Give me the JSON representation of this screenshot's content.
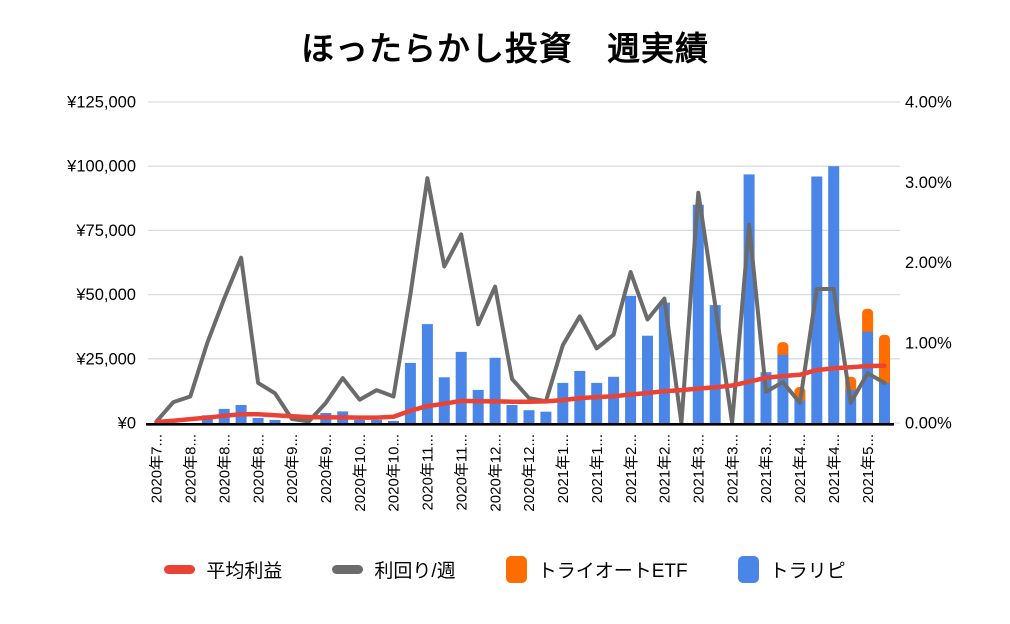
{
  "title": "ほったらかし投資　週実績",
  "legend": [
    {
      "label": "平均利益",
      "type": "line",
      "color": "#EA4335"
    },
    {
      "label": "利回り/週",
      "type": "line",
      "color": "#6B6B6B"
    },
    {
      "label": "トライオートETF",
      "type": "bar",
      "color": "#FF6D01"
    },
    {
      "label": "トラリピ",
      "type": "bar",
      "color": "#4A86E8"
    }
  ],
  "chart_data": {
    "type": "combo-bar-line",
    "weeks": 44,
    "x_tick_labels": [
      "2020年7...",
      "2020年8...",
      "2020年8...",
      "2020年8...",
      "2020年9...",
      "2020年9...",
      "2020年10...",
      "2020年10...",
      "2020年11...",
      "2020年11...",
      "2020年12...",
      "2020年12...",
      "2021年1...",
      "2021年1...",
      "2021年2...",
      "2021年2...",
      "2021年3...",
      "2021年3...",
      "2021年3...",
      "2021年4...",
      "2021年4...",
      "2021年5..."
    ],
    "x_tick_every": 2,
    "left_axis": {
      "min": 0,
      "max": 125000,
      "ticks": [
        "¥0",
        "¥25,000",
        "¥50,000",
        "¥75,000",
        "¥100,000",
        "¥125,000"
      ]
    },
    "right_axis": {
      "min": 0,
      "max": 4,
      "ticks": [
        "0.00%",
        "1.00%",
        "2.00%",
        "3.00%",
        "4.00%"
      ]
    },
    "series": [
      {
        "name": "トラリピ",
        "type": "bar",
        "axis": "left",
        "color": "#4A86E8",
        "values": [
          0,
          0,
          0,
          3000,
          5500,
          7000,
          2000,
          1200,
          0,
          0,
          3900,
          4500,
          1200,
          1200,
          800,
          23400,
          38500,
          17800,
          27700,
          12900,
          25400,
          7000,
          5000,
          4400,
          15600,
          20300,
          15600,
          18000,
          49500,
          34000,
          46900,
          0,
          85000,
          45900,
          0,
          96800,
          19800,
          26500,
          8800,
          96000,
          100000,
          12900,
          35500,
          15600
        ]
      },
      {
        "name": "トライオートETF",
        "type": "bar",
        "axis": "left",
        "stacked_on": "トラリピ",
        "color": "#FF6D01",
        "values": [
          0,
          0,
          0,
          0,
          0,
          0,
          0,
          0,
          0,
          0,
          0,
          0,
          0,
          0,
          0,
          0,
          0,
          0,
          0,
          0,
          0,
          0,
          0,
          0,
          0,
          0,
          0,
          0,
          0,
          0,
          0,
          0,
          0,
          0,
          0,
          0,
          0,
          5000,
          5200,
          0,
          0,
          5100,
          9000,
          18800
        ]
      },
      {
        "name": "利回り/週",
        "type": "line",
        "axis": "right",
        "color": "#6B6B6B",
        "values": [
          0.02,
          0.26,
          0.33,
          1.0,
          1.55,
          2.06,
          0.5,
          0.37,
          0.05,
          0.02,
          0.25,
          0.56,
          0.29,
          0.41,
          0.33,
          1.6,
          3.05,
          1.95,
          2.35,
          1.23,
          1.7,
          0.55,
          0.31,
          0.27,
          0.97,
          1.33,
          0.93,
          1.1,
          1.88,
          1.29,
          1.55,
          0.0,
          2.87,
          1.47,
          0.0,
          2.47,
          0.39,
          0.51,
          0.25,
          1.67,
          1.67,
          0.25,
          0.62,
          0.5
        ]
      },
      {
        "name": "平均利益",
        "type": "line",
        "axis": "left",
        "color": "#EA4335",
        "values": [
          400,
          900,
          1500,
          2100,
          2800,
          3400,
          3400,
          3000,
          2600,
          2300,
          2200,
          2200,
          2100,
          2100,
          2400,
          4800,
          6600,
          7500,
          8600,
          8500,
          8400,
          8300,
          8300,
          8400,
          8900,
          9700,
          10100,
          10400,
          11100,
          11700,
          12400,
          12800,
          13400,
          13900,
          14600,
          16100,
          17600,
          18300,
          18800,
          20600,
          21300,
          21700,
          22200,
          22300
        ]
      }
    ],
    "colors": {
      "gridline": "#dadce0",
      "axis_line": "#000000",
      "text": "#000000",
      "background": "#ffffff"
    }
  }
}
